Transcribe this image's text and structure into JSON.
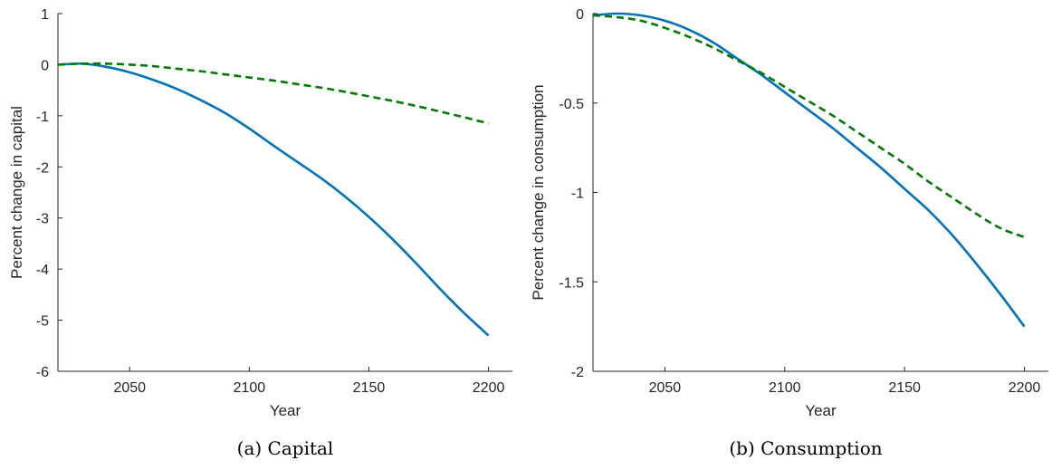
{
  "chart_data": [
    {
      "type": "line",
      "caption": "(a) Capital",
      "xlabel": "Year",
      "ylabel": "Percent change in capital",
      "xlim": [
        2020,
        2210
      ],
      "ylim": [
        -6,
        1
      ],
      "xticks": [
        2050,
        2100,
        2150,
        2200
      ],
      "yticks": [
        1,
        0,
        -1,
        -2,
        -3,
        -4,
        -5,
        -6
      ],
      "xtick_labels": [
        "2050",
        "2100",
        "2150",
        "2200"
      ],
      "ytick_labels": [
        "1",
        "0",
        "-1",
        "-2",
        "-3",
        "-4",
        "-5",
        "-6"
      ],
      "grid": false,
      "series": [
        {
          "style": "solid",
          "color": "#0072BD",
          "x": [
            2020,
            2030,
            2040,
            2050,
            2060,
            2070,
            2080,
            2090,
            2100,
            2110,
            2120,
            2130,
            2140,
            2150,
            2160,
            2170,
            2180,
            2190,
            2200
          ],
          "values": [
            0,
            0.02,
            -0.04,
            -0.15,
            -0.3,
            -0.48,
            -0.7,
            -0.95,
            -1.25,
            -1.58,
            -1.9,
            -2.22,
            -2.58,
            -2.98,
            -3.42,
            -3.9,
            -4.4,
            -4.87,
            -5.3
          ]
        },
        {
          "style": "dashed",
          "color": "#007A00",
          "x": [
            2020,
            2030,
            2040,
            2050,
            2060,
            2070,
            2080,
            2090,
            2100,
            2110,
            2120,
            2130,
            2140,
            2150,
            2160,
            2170,
            2180,
            2190,
            2200
          ],
          "values": [
            0,
            0.02,
            0.02,
            0,
            -0.03,
            -0.08,
            -0.13,
            -0.19,
            -0.25,
            -0.31,
            -0.38,
            -0.45,
            -0.53,
            -0.62,
            -0.71,
            -0.81,
            -0.92,
            -1.03,
            -1.15
          ]
        }
      ]
    },
    {
      "type": "line",
      "caption": "(b) Consumption",
      "xlabel": "Year",
      "ylabel": "Percent change in consumption",
      "xlim": [
        2020,
        2210
      ],
      "ylim": [
        -2,
        0
      ],
      "xticks": [
        2050,
        2100,
        2150,
        2200
      ],
      "yticks": [
        0,
        -0.5,
        -1,
        -1.5,
        -2
      ],
      "xtick_labels": [
        "2050",
        "2100",
        "2150",
        "2200"
      ],
      "ytick_labels": [
        "0",
        "-0.5",
        "-1",
        "-1.5",
        "-2"
      ],
      "grid": false,
      "series": [
        {
          "style": "solid",
          "color": "#0072BD",
          "x": [
            2020,
            2030,
            2040,
            2050,
            2060,
            2070,
            2080,
            2090,
            2100,
            2110,
            2120,
            2130,
            2140,
            2150,
            2160,
            2170,
            2180,
            2190,
            2200
          ],
          "values": [
            -0.01,
            0,
            -0.01,
            -0.04,
            -0.09,
            -0.16,
            -0.25,
            -0.34,
            -0.44,
            -0.54,
            -0.64,
            -0.75,
            -0.86,
            -0.98,
            -1.1,
            -1.24,
            -1.4,
            -1.57,
            -1.75
          ]
        },
        {
          "style": "dashed",
          "color": "#007A00",
          "x": [
            2020,
            2030,
            2040,
            2050,
            2060,
            2070,
            2080,
            2090,
            2100,
            2110,
            2120,
            2130,
            2140,
            2150,
            2160,
            2170,
            2180,
            2190,
            2200
          ],
          "values": [
            -0.01,
            -0.02,
            -0.04,
            -0.08,
            -0.13,
            -0.19,
            -0.26,
            -0.33,
            -0.41,
            -0.49,
            -0.57,
            -0.66,
            -0.75,
            -0.84,
            -0.94,
            -1.03,
            -1.12,
            -1.2,
            -1.25
          ]
        }
      ]
    }
  ]
}
